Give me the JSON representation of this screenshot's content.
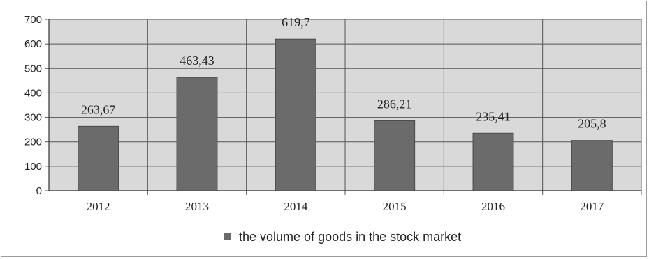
{
  "chart_data": {
    "type": "bar",
    "categories": [
      "2012",
      "2013",
      "2014",
      "2015",
      "2016",
      "2017"
    ],
    "series": [
      {
        "name": "the volume of goods in the stock market",
        "values": [
          263.67,
          463.43,
          619.7,
          286.21,
          235.41,
          205.8
        ],
        "labels": [
          "263,67",
          "463,43",
          "619,7",
          "286,21",
          "235,41",
          "205,8"
        ]
      }
    ],
    "yticks": [
      "0",
      "100",
      "200",
      "300",
      "400",
      "500",
      "600",
      "700"
    ],
    "ylim": [
      0,
      700
    ],
    "grid": true,
    "legend_position": "bottom",
    "colors": {
      "bar": "#6b6b6b",
      "bar_edge": "#4a4a4a",
      "plot_bg": "#d9d9d9",
      "grid": "#555555"
    }
  }
}
